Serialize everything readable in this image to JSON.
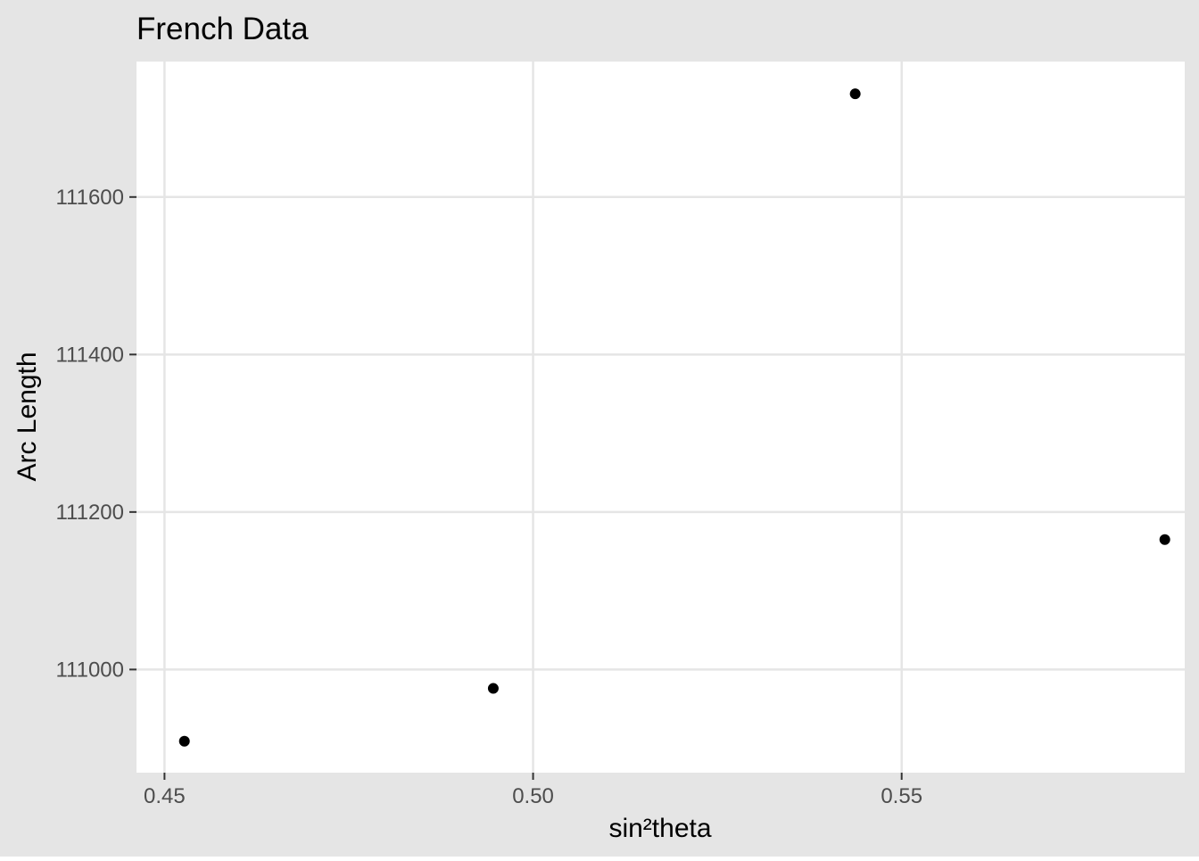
{
  "chart_data": {
    "type": "scatter",
    "title": "French Data",
    "xlabel": "sin²theta",
    "ylabel": "Arc Length",
    "x": [
      0.4527,
      0.4946,
      0.5437,
      0.5857
    ],
    "y": [
      110909,
      110976,
      111731,
      111165
    ],
    "xlim": [
      0.4462,
      0.5884
    ],
    "ylim": [
      110869,
      111772
    ],
    "x_ticks": [
      0.45,
      0.5,
      0.55
    ],
    "x_tick_labels": [
      "0.45",
      "0.50",
      "0.55"
    ],
    "y_ticks": [
      111000,
      111200,
      111400,
      111600
    ],
    "y_tick_labels": [
      "111000",
      "111200",
      "111400",
      "111600"
    ],
    "grid": true,
    "legend": false,
    "colors": {
      "outer_background": "#e5e5e5",
      "panel_background": "#ffffff",
      "gridline": "#e5e5e5",
      "point": "#000000",
      "tick_text": "#4d4d4d",
      "axis_title": "#000000"
    }
  }
}
